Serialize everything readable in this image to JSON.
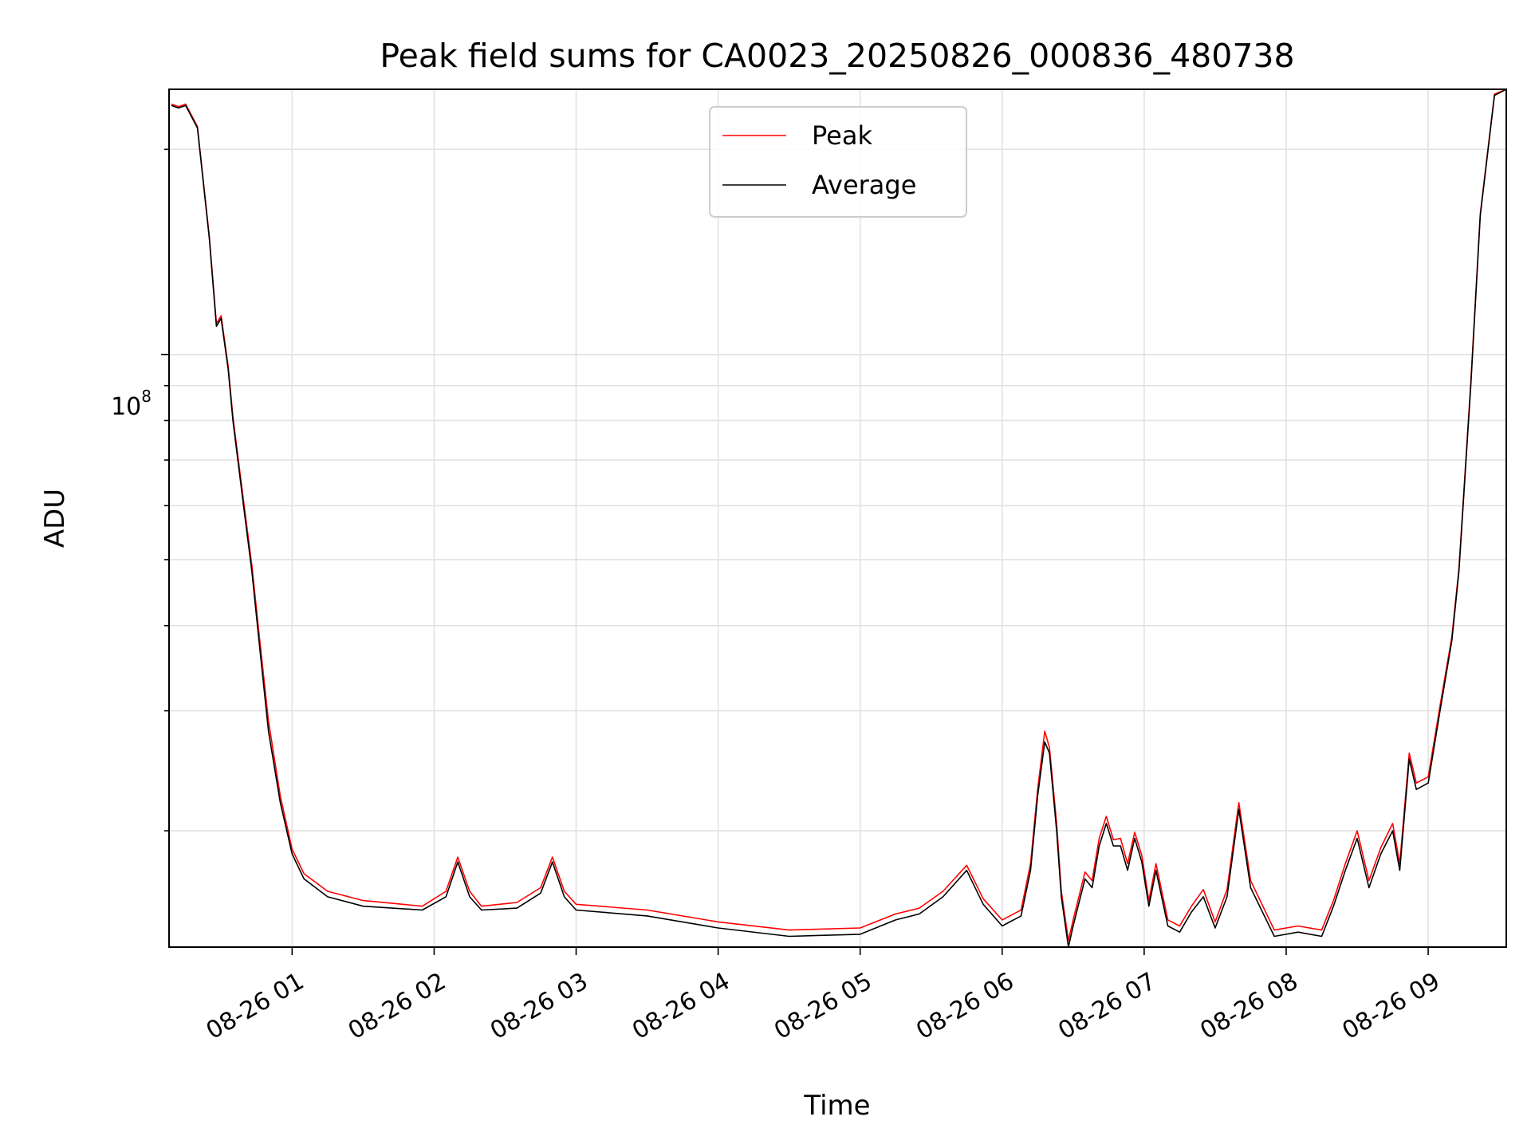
{
  "chart_data": {
    "type": "line",
    "title": "Peak field sums for CA0023_20250826_000836_480738",
    "xlabel": "Time",
    "ylabel": "ADU",
    "y_scale": "log",
    "y_tick_base": "10",
    "y_tick_exponent": "8",
    "xlim": [
      "2025-08-26 00:08",
      "2025-08-26 09:33"
    ],
    "ylim": [
      13500000,
      245000000
    ],
    "x_ticks": [
      {
        "label": "08-26 01",
        "time": "2025-08-26 01:00"
      },
      {
        "label": "08-26 02",
        "time": "2025-08-26 02:00"
      },
      {
        "label": "08-26 03",
        "time": "2025-08-26 03:00"
      },
      {
        "label": "08-26 04",
        "time": "2025-08-26 04:00"
      },
      {
        "label": "08-26 05",
        "time": "2025-08-26 05:00"
      },
      {
        "label": "08-26 06",
        "time": "2025-08-26 06:00"
      },
      {
        "label": "08-26 07",
        "time": "2025-08-26 07:00"
      },
      {
        "label": "08-26 08",
        "time": "2025-08-26 08:00"
      },
      {
        "label": "08-26 09",
        "time": "2025-08-26 09:00"
      }
    ],
    "grid": true,
    "legend_position": "upper-center",
    "series": [
      {
        "name": "Peak",
        "color": "#ff0000"
      },
      {
        "name": "Average",
        "color": "#000000"
      }
    ],
    "x": [
      "2025-08-26 00:09",
      "2025-08-26 00:12",
      "2025-08-26 00:15",
      "2025-08-26 00:20",
      "2025-08-26 00:25",
      "2025-08-26 00:28",
      "2025-08-26 00:30",
      "2025-08-26 00:33",
      "2025-08-26 00:35",
      "2025-08-26 00:38",
      "2025-08-26 00:40",
      "2025-08-26 00:43",
      "2025-08-26 00:46",
      "2025-08-26 00:50",
      "2025-08-26 00:55",
      "2025-08-26 01:00",
      "2025-08-26 01:05",
      "2025-08-26 01:15",
      "2025-08-26 01:30",
      "2025-08-26 01:55",
      "2025-08-26 02:05",
      "2025-08-26 02:10",
      "2025-08-26 02:15",
      "2025-08-26 02:20",
      "2025-08-26 02:35",
      "2025-08-26 02:45",
      "2025-08-26 02:50",
      "2025-08-26 02:55",
      "2025-08-26 03:00",
      "2025-08-26 03:30",
      "2025-08-26 04:00",
      "2025-08-26 04:30",
      "2025-08-26 05:00",
      "2025-08-26 05:15",
      "2025-08-26 05:25",
      "2025-08-26 05:35",
      "2025-08-26 05:45",
      "2025-08-26 05:52",
      "2025-08-26 06:00",
      "2025-08-26 06:08",
      "2025-08-26 06:12",
      "2025-08-26 06:15",
      "2025-08-26 06:18",
      "2025-08-26 06:20",
      "2025-08-26 06:23",
      "2025-08-26 06:25",
      "2025-08-26 06:28",
      "2025-08-26 06:30",
      "2025-08-26 06:35",
      "2025-08-26 06:38",
      "2025-08-26 06:41",
      "2025-08-26 06:44",
      "2025-08-26 06:47",
      "2025-08-26 06:50",
      "2025-08-26 06:53",
      "2025-08-26 06:56",
      "2025-08-26 06:59",
      "2025-08-26 07:02",
      "2025-08-26 07:05",
      "2025-08-26 07:10",
      "2025-08-26 07:15",
      "2025-08-26 07:20",
      "2025-08-26 07:25",
      "2025-08-26 07:30",
      "2025-08-26 07:35",
      "2025-08-26 07:40",
      "2025-08-26 07:45",
      "2025-08-26 07:55",
      "2025-08-26 08:05",
      "2025-08-26 08:15",
      "2025-08-26 08:20",
      "2025-08-26 08:25",
      "2025-08-26 08:30",
      "2025-08-26 08:35",
      "2025-08-26 08:40",
      "2025-08-26 08:45",
      "2025-08-26 08:48",
      "2025-08-26 08:52",
      "2025-08-26 08:55",
      "2025-08-26 09:00",
      "2025-08-26 09:05",
      "2025-08-26 09:10",
      "2025-08-26 09:13",
      "2025-08-26 09:18",
      "2025-08-26 09:22",
      "2025-08-26 09:28",
      "2025-08-26 09:33"
    ],
    "average_values": [
      232000000,
      230000000,
      232000000,
      215000000,
      148000000,
      110000000,
      113000000,
      95000000,
      80000000,
      66000000,
      58000000,
      48000000,
      38000000,
      28000000,
      22000000,
      18500000,
      17000000,
      16000000,
      15500000,
      15300000,
      16000000,
      18000000,
      16000000,
      15300000,
      15400000,
      16200000,
      18000000,
      16000000,
      15300000,
      15000000,
      14400000,
      14000000,
      14100000,
      14800000,
      15100000,
      16000000,
      17500000,
      15600000,
      14500000,
      15000000,
      17500000,
      22500000,
      27000000,
      26000000,
      20000000,
      16000000,
      13500000,
      14500000,
      17000000,
      16500000,
      19000000,
      20500000,
      19000000,
      19000000,
      17500000,
      19500000,
      18000000,
      15500000,
      17500000,
      14500000,
      14200000,
      15200000,
      16000000,
      14400000,
      16000000,
      21500000,
      16500000,
      14000000,
      14200000,
      14000000,
      15500000,
      17500000,
      19500000,
      16500000,
      18500000,
      20000000,
      17500000,
      25500000,
      23000000,
      23500000,
      30000000,
      38000000,
      48000000,
      90000000,
      160000000,
      240000000,
      245000000
    ],
    "peak_values": [
      233000000,
      231000000,
      233000000,
      216000000,
      149000000,
      111000000,
      114000000,
      96000000,
      81000000,
      67000000,
      59000000,
      49000000,
      39000000,
      29000000,
      22500000,
      18800000,
      17300000,
      16300000,
      15800000,
      15500000,
      16300000,
      18300000,
      16300000,
      15500000,
      15700000,
      16500000,
      18300000,
      16300000,
      15600000,
      15300000,
      14700000,
      14300000,
      14400000,
      15100000,
      15400000,
      16300000,
      17800000,
      15900000,
      14800000,
      15300000,
      17900000,
      23000000,
      28000000,
      26500000,
      20500000,
      16300000,
      13800000,
      14800000,
      17400000,
      16900000,
      19500000,
      21000000,
      19400000,
      19500000,
      17900000,
      19900000,
      18400000,
      15800000,
      17900000,
      14800000,
      14500000,
      15500000,
      16400000,
      14700000,
      16400000,
      22000000,
      16900000,
      14300000,
      14500000,
      14300000,
      15800000,
      17900000,
      20000000,
      16900000,
      18900000,
      20500000,
      17900000,
      26000000,
      23500000,
      24000000,
      30500000,
      38500000,
      48500000,
      91000000,
      161000000,
      241000000,
      245000000
    ]
  }
}
